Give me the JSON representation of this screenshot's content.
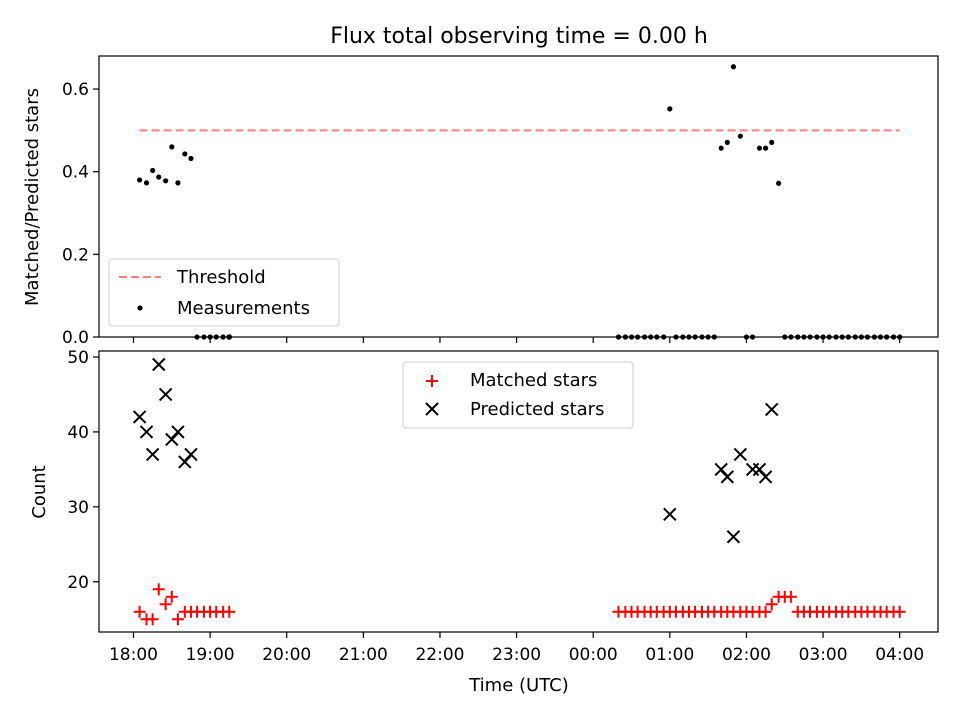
{
  "title": "Flux total observing time = 0.00 h",
  "x_axis": {
    "label": "Time (UTC)",
    "ticks": [
      "18:00",
      "19:00",
      "20:00",
      "21:00",
      "22:00",
      "23:00",
      "00:00",
      "01:00",
      "02:00",
      "03:00",
      "04:00"
    ]
  },
  "chart_data": [
    {
      "type": "scatter",
      "ylabel": "Matched/Predicted stars",
      "ylim": [
        0,
        0.68
      ],
      "xlim_hours": [
        17.55,
        28.5
      ],
      "yticks": [
        "0.0",
        "0.2",
        "0.4",
        "0.6"
      ],
      "ytick_values": [
        0,
        0.2,
        0.4,
        0.6
      ],
      "legend_position": "lower-left",
      "threshold": {
        "name": "Threshold",
        "value": 0.5,
        "x_range": [
          18.08,
          28.0
        ],
        "color": "#ff7f7f"
      },
      "series": [
        {
          "name": "Measurements",
          "color": "#000000",
          "x": [
            18.08,
            18.17,
            18.25,
            18.33,
            18.42,
            18.5,
            18.58,
            18.67,
            18.75,
            18.83,
            18.92,
            19.0,
            19.08,
            19.17,
            19.25,
            19.25,
            19.25,
            19.25,
            24.33,
            24.42,
            24.5,
            24.58,
            24.67,
            24.75,
            24.83,
            24.92,
            25.0,
            25.08,
            25.17,
            25.25,
            25.33,
            25.42,
            25.5,
            25.58,
            25.67,
            25.75,
            25.83,
            25.92,
            26.0,
            26.08,
            26.17,
            26.25,
            26.33,
            26.42,
            26.5,
            26.58,
            26.67,
            26.75,
            26.83,
            26.92,
            27.0,
            27.08,
            27.17,
            27.25,
            27.33,
            27.42,
            27.5,
            27.58,
            27.67,
            27.75,
            27.83,
            27.92,
            28.0
          ],
          "y": [
            0.38,
            0.373,
            0.403,
            0.387,
            0.378,
            0.46,
            0.373,
            0.443,
            0.432,
            0.0,
            0.0,
            0.0,
            0.0,
            0.0,
            0.0,
            0.0,
            0.0,
            0.0,
            0.0,
            0.0,
            0.0,
            0.0,
            0.0,
            0.0,
            0.0,
            0.0,
            0.552,
            0.0,
            0.0,
            0.0,
            0.0,
            0.0,
            0.0,
            0.0,
            0.457,
            0.471,
            0.654,
            0.486,
            0.0,
            0.0,
            0.457,
            0.457,
            0.471,
            0.372,
            0.0,
            0.0,
            0.0,
            0.0,
            0.0,
            0.0,
            0.0,
            0.0,
            0.0,
            0.0,
            0.0,
            0.0,
            0.0,
            0.0,
            0.0,
            0.0,
            0.0,
            0.0,
            0.0
          ]
        }
      ]
    },
    {
      "type": "scatter",
      "ylabel": "Count",
      "ylim": [
        13.3,
        50.8
      ],
      "xlim_hours": [
        17.55,
        28.5
      ],
      "yticks": [
        "20",
        "30",
        "40",
        "50"
      ],
      "ytick_values": [
        20,
        30,
        40,
        50
      ],
      "legend_position": "top-center",
      "series": [
        {
          "name": "Matched stars",
          "marker": "plus",
          "color": "#ff0000",
          "x": [
            18.08,
            18.17,
            18.25,
            18.33,
            18.42,
            18.5,
            18.58,
            18.67,
            18.75,
            18.83,
            18.92,
            19.0,
            19.08,
            19.17,
            19.25,
            24.33,
            24.42,
            24.5,
            24.58,
            24.67,
            24.75,
            24.83,
            24.92,
            25.0,
            25.08,
            25.17,
            25.25,
            25.33,
            25.42,
            25.5,
            25.58,
            25.67,
            25.75,
            25.83,
            25.92,
            26.0,
            26.08,
            26.17,
            26.25,
            26.33,
            26.42,
            26.5,
            26.58,
            26.67,
            26.75,
            26.83,
            26.92,
            27.0,
            27.08,
            27.17,
            27.25,
            27.33,
            27.42,
            27.5,
            27.58,
            27.67,
            27.75,
            27.83,
            27.92,
            28.0
          ],
          "y": [
            16,
            15,
            15,
            19,
            17,
            18,
            15,
            16,
            16,
            16,
            16,
            16,
            16,
            16,
            16,
            16,
            16,
            16,
            16,
            16,
            16,
            16,
            16,
            16,
            16,
            16,
            16,
            16,
            16,
            16,
            16,
            16,
            16,
            16,
            16,
            16,
            16,
            16,
            16,
            17,
            18,
            18,
            18,
            16,
            16,
            16,
            16,
            16,
            16,
            16,
            16,
            16,
            16,
            16,
            16,
            16,
            16,
            16,
            16,
            16
          ]
        },
        {
          "name": "Predicted stars",
          "marker": "x",
          "color": "#000000",
          "x": [
            18.08,
            18.17,
            18.25,
            18.33,
            18.42,
            18.5,
            18.58,
            18.67,
            18.75,
            25.0,
            25.67,
            25.75,
            25.83,
            25.92,
            26.08,
            26.17,
            26.25,
            26.33
          ],
          "y": [
            42,
            40,
            37,
            49,
            45,
            39,
            40,
            36,
            37,
            29,
            35,
            34,
            26,
            37,
            35,
            35,
            34,
            43
          ]
        }
      ]
    }
  ]
}
